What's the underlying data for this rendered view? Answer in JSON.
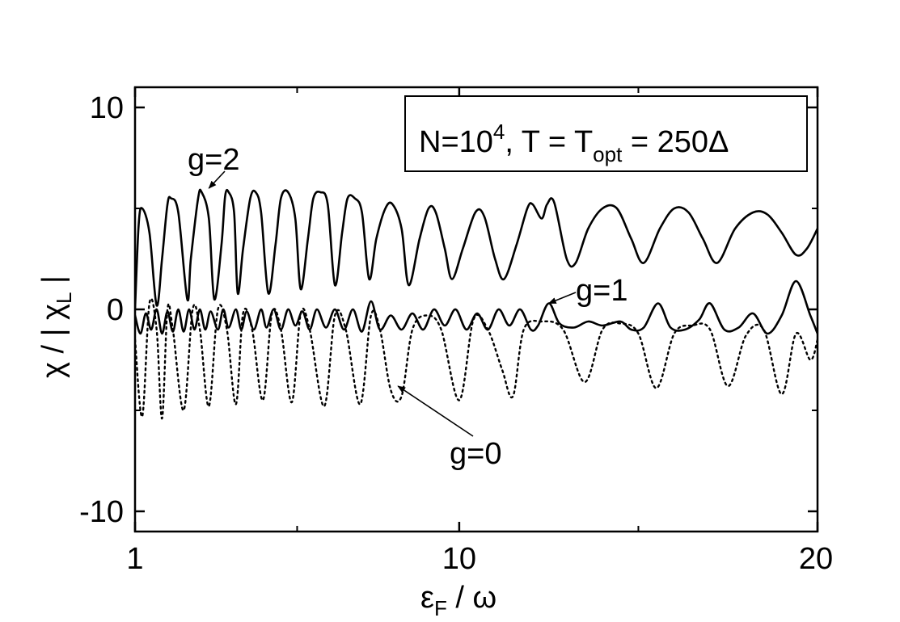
{
  "chart_data": {
    "type": "line",
    "title": "",
    "xlabel": {
      "main": "ε",
      "sub": "F",
      "rest": " / ω"
    },
    "ylabel": {
      "main": "χ / | χ",
      "sub": "L",
      "rest": " |"
    },
    "xlim": [
      1,
      20
    ],
    "ylim": [
      -11,
      11
    ],
    "x_ticks": [
      {
        "value": 1,
        "label": "1"
      },
      {
        "value": 10,
        "label": "10"
      },
      {
        "value": 20,
        "label": "20"
      }
    ],
    "x_minor_ticks": [
      5.5,
      15
    ],
    "y_ticks": [
      {
        "value": 10,
        "label": "10"
      },
      {
        "value": 0,
        "label": "0"
      },
      {
        "value": -10,
        "label": "-10"
      }
    ],
    "y_minor_ticks": [
      5,
      -5
    ],
    "legend": {
      "placement": "top-right",
      "parts": [
        "N=10",
        "4",
        ",  T = T",
        "opt",
        " = 250Δ"
      ]
    },
    "series": [
      {
        "name": "g=2",
        "style": "solid",
        "points": [
          [
            1.0,
            0.0
          ],
          [
            1.1,
            4.2
          ],
          [
            1.2,
            5.0
          ],
          [
            1.4,
            3.8
          ],
          [
            1.6,
            0.2
          ],
          [
            1.75,
            2.5
          ],
          [
            1.9,
            5.2
          ],
          [
            2.0,
            5.5
          ],
          [
            2.2,
            4.8
          ],
          [
            2.45,
            0.5
          ],
          [
            2.55,
            2.5
          ],
          [
            2.75,
            5.5
          ],
          [
            2.85,
            5.8
          ],
          [
            3.05,
            4.5
          ],
          [
            3.2,
            0.5
          ],
          [
            3.4,
            3.2
          ],
          [
            3.5,
            5.6
          ],
          [
            3.6,
            5.8
          ],
          [
            3.75,
            4.8
          ],
          [
            3.85,
            0.8
          ],
          [
            4.0,
            3.0
          ],
          [
            4.2,
            5.5
          ],
          [
            4.35,
            5.8
          ],
          [
            4.5,
            4.8
          ],
          [
            4.7,
            0.8
          ],
          [
            4.9,
            3.2
          ],
          [
            5.05,
            5.5
          ],
          [
            5.25,
            5.8
          ],
          [
            5.45,
            4.5
          ],
          [
            5.6,
            1.0
          ],
          [
            5.8,
            3.5
          ],
          [
            5.95,
            5.5
          ],
          [
            6.15,
            5.8
          ],
          [
            6.35,
            5.2
          ],
          [
            6.55,
            1.2
          ],
          [
            6.75,
            3.8
          ],
          [
            6.9,
            5.5
          ],
          [
            7.1,
            5.5
          ],
          [
            7.3,
            4.8
          ],
          [
            7.5,
            1.5
          ],
          [
            7.7,
            3.5
          ],
          [
            7.95,
            5.0
          ],
          [
            8.15,
            5.2
          ],
          [
            8.4,
            4.0
          ],
          [
            8.6,
            1.2
          ],
          [
            8.9,
            3.5
          ],
          [
            9.15,
            5.0
          ],
          [
            9.35,
            4.8
          ],
          [
            9.6,
            3.0
          ],
          [
            9.8,
            1.5
          ],
          [
            10.1,
            3.0
          ],
          [
            10.45,
            4.8
          ],
          [
            10.7,
            4.6
          ],
          [
            11.0,
            2.5
          ],
          [
            11.25,
            1.5
          ],
          [
            11.6,
            3.2
          ],
          [
            11.9,
            5.0
          ],
          [
            12.05,
            5.2
          ],
          [
            12.3,
            4.5
          ],
          [
            12.45,
            5.2
          ],
          [
            12.65,
            5.3
          ],
          [
            13.0,
            2.5
          ],
          [
            13.25,
            2.3
          ],
          [
            13.6,
            4.0
          ],
          [
            14.0,
            5.0
          ],
          [
            14.4,
            5.0
          ],
          [
            14.8,
            3.5
          ],
          [
            15.15,
            2.3
          ],
          [
            15.6,
            4.0
          ],
          [
            16.0,
            5.0
          ],
          [
            16.4,
            4.8
          ],
          [
            16.8,
            3.5
          ],
          [
            17.2,
            2.3
          ],
          [
            17.7,
            4.0
          ],
          [
            18.2,
            4.8
          ],
          [
            18.6,
            4.7
          ],
          [
            19.0,
            3.8
          ],
          [
            19.4,
            2.7
          ],
          [
            19.7,
            3.0
          ],
          [
            20.0,
            4.0
          ]
        ]
      },
      {
        "name": "g=1",
        "style": "solid",
        "points": [
          [
            1.0,
            -0.3
          ],
          [
            1.15,
            -1.2
          ],
          [
            1.3,
            -0.2
          ],
          [
            1.45,
            -1.0
          ],
          [
            1.6,
            0.0
          ],
          [
            1.75,
            -1.2
          ],
          [
            1.9,
            -0.1
          ],
          [
            2.05,
            -1.1
          ],
          [
            2.2,
            0.0
          ],
          [
            2.35,
            -1.1
          ],
          [
            2.5,
            0.0
          ],
          [
            2.65,
            -1.0
          ],
          [
            2.8,
            0.0
          ],
          [
            2.95,
            -1.0
          ],
          [
            3.1,
            -0.1
          ],
          [
            3.3,
            -1.0
          ],
          [
            3.45,
            0.0
          ],
          [
            3.6,
            -0.9
          ],
          [
            3.8,
            0.0
          ],
          [
            3.95,
            -1.0
          ],
          [
            4.1,
            -0.1
          ],
          [
            4.3,
            -1.0
          ],
          [
            4.5,
            0.0
          ],
          [
            4.65,
            -0.9
          ],
          [
            4.85,
            0.0
          ],
          [
            5.05,
            -1.0
          ],
          [
            5.25,
            0.0
          ],
          [
            5.45,
            -0.8
          ],
          [
            5.65,
            -0.1
          ],
          [
            5.85,
            -1.0
          ],
          [
            6.05,
            0.0
          ],
          [
            6.3,
            -0.9
          ],
          [
            6.55,
            0.0
          ],
          [
            6.8,
            -1.0
          ],
          [
            7.05,
            0.0
          ],
          [
            7.3,
            -1.1
          ],
          [
            7.55,
            0.4
          ],
          [
            7.8,
            -1.0
          ],
          [
            8.1,
            -0.3
          ],
          [
            8.4,
            -1.0
          ],
          [
            8.7,
            -0.2
          ],
          [
            9.0,
            -1.0
          ],
          [
            9.3,
            0.0
          ],
          [
            9.6,
            -0.8
          ],
          [
            9.9,
            0.0
          ],
          [
            10.2,
            -1.0
          ],
          [
            10.5,
            -0.2
          ],
          [
            10.8,
            -1.0
          ],
          [
            11.1,
            0.0
          ],
          [
            11.4,
            -0.8
          ],
          [
            11.7,
            0.0
          ],
          [
            12.0,
            -1.0
          ],
          [
            12.2,
            -0.8
          ],
          [
            12.5,
            0.3
          ],
          [
            12.8,
            -0.7
          ],
          [
            13.2,
            -0.9
          ],
          [
            13.6,
            -0.6
          ],
          [
            14.0,
            -0.8
          ],
          [
            14.5,
            -0.6
          ],
          [
            14.8,
            -1.0
          ],
          [
            15.15,
            -0.9
          ],
          [
            15.55,
            0.3
          ],
          [
            15.9,
            -0.9
          ],
          [
            16.3,
            -1.0
          ],
          [
            16.7,
            -0.5
          ],
          [
            17.0,
            0.3
          ],
          [
            17.4,
            -1.0
          ],
          [
            17.8,
            -0.9
          ],
          [
            18.2,
            -0.2
          ],
          [
            18.6,
            -1.2
          ],
          [
            19.0,
            -0.3
          ],
          [
            19.4,
            1.4
          ],
          [
            19.8,
            -0.3
          ],
          [
            20.0,
            -1.2
          ]
        ]
      },
      {
        "name": "g=0",
        "style": "dotted",
        "points": [
          [
            1.0,
            -1.5
          ],
          [
            1.2,
            -5.3
          ],
          [
            1.4,
            0.3
          ],
          [
            1.6,
            -1.0
          ],
          [
            1.75,
            -5.4
          ],
          [
            1.9,
            0.0
          ],
          [
            2.05,
            -1.0
          ],
          [
            2.35,
            -5.0
          ],
          [
            2.6,
            0.0
          ],
          [
            2.8,
            -1.0
          ],
          [
            3.05,
            -4.8
          ],
          [
            3.3,
            0.0
          ],
          [
            3.55,
            -1.0
          ],
          [
            3.8,
            -4.7
          ],
          [
            4.0,
            -0.2
          ],
          [
            4.25,
            -1.0
          ],
          [
            4.55,
            -4.5
          ],
          [
            4.8,
            -0.2
          ],
          [
            5.05,
            -1.0
          ],
          [
            5.35,
            -4.6
          ],
          [
            5.6,
            -0.2
          ],
          [
            5.85,
            -1.0
          ],
          [
            6.25,
            -4.8
          ],
          [
            6.55,
            -0.3
          ],
          [
            6.85,
            -1.0
          ],
          [
            7.25,
            -4.7
          ],
          [
            7.55,
            -0.3
          ],
          [
            7.8,
            -1.0
          ],
          [
            8.1,
            -4.0
          ],
          [
            8.4,
            -4.3
          ],
          [
            8.7,
            -1.0
          ],
          [
            9.1,
            -0.3
          ],
          [
            9.5,
            -1.0
          ],
          [
            10.0,
            -4.5
          ],
          [
            10.4,
            -0.5
          ],
          [
            10.8,
            -1.0
          ],
          [
            11.2,
            -3.0
          ],
          [
            11.5,
            -4.3
          ],
          [
            11.8,
            -1.0
          ],
          [
            12.3,
            -0.6
          ],
          [
            12.9,
            -1.0
          ],
          [
            13.5,
            -3.6
          ],
          [
            14.0,
            -1.0
          ],
          [
            14.5,
            -0.7
          ],
          [
            15.0,
            -1.2
          ],
          [
            15.5,
            -3.9
          ],
          [
            16.0,
            -1.2
          ],
          [
            16.5,
            -0.8
          ],
          [
            17.0,
            -1.0
          ],
          [
            17.5,
            -3.8
          ],
          [
            18.0,
            -1.3
          ],
          [
            18.5,
            -1.0
          ],
          [
            19.0,
            -4.2
          ],
          [
            19.4,
            -1.2
          ],
          [
            19.8,
            -2.5
          ],
          [
            20.0,
            -1.5
          ]
        ]
      }
    ],
    "annotations": [
      {
        "label": "g=2",
        "series": "g=2",
        "x": 3.05,
        "y": 6.0
      },
      {
        "label": "g=1",
        "series": "g=1",
        "x": 12.5,
        "y": 0.3
      },
      {
        "label": "g=0",
        "series": "g=0",
        "x": 8.3,
        "y": -3.8
      }
    ]
  }
}
